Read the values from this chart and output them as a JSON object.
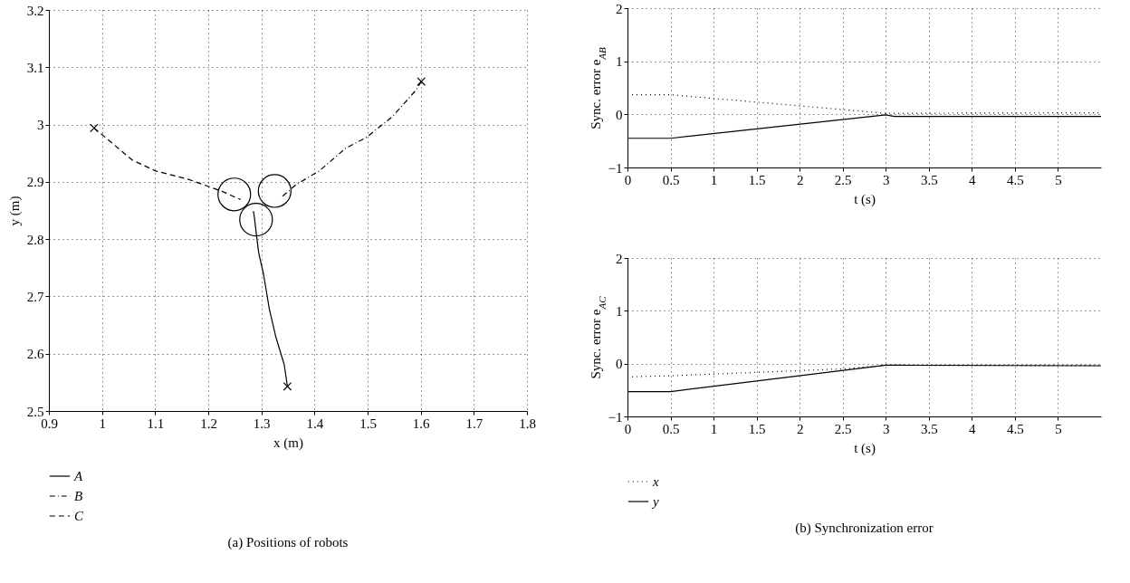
{
  "chart_data": [
    {
      "type": "line",
      "title": "(a)  Positions of robots",
      "xlabel": "x (m)",
      "ylabel": "y (m)",
      "xlim": [
        0.9,
        1.8
      ],
      "xticks": [
        0.9,
        1,
        1.1,
        1.2,
        1.3,
        1.4,
        1.5,
        1.6,
        1.7,
        1.8
      ],
      "ylim": [
        2.5,
        3.2
      ],
      "yticks": [
        2.5,
        2.6,
        2.7,
        2.8,
        2.9,
        3,
        3.1,
        3.2
      ],
      "grid": true,
      "legend": "bottom",
      "series": [
        {
          "name": "A",
          "color": "#000000",
          "line_style": "solid",
          "x": [
            1.349,
            1.343,
            1.327,
            1.315,
            1.304,
            1.295,
            1.29,
            1.287,
            1.285
          ],
          "values": [
            2.543,
            2.581,
            2.63,
            2.678,
            2.739,
            2.776,
            2.813,
            2.837,
            2.849
          ]
        },
        {
          "name": "B",
          "color": "#000000",
          "line_style": "dashdot",
          "x": [
            1.601,
            1.591,
            1.547,
            1.497,
            1.459,
            1.409,
            1.365,
            1.34
          ],
          "values": [
            3.075,
            3.06,
            3.014,
            2.977,
            2.959,
            2.919,
            2.895,
            2.875
          ]
        },
        {
          "name": "C",
          "color": "#000000",
          "line_style": "dashed",
          "x": [
            0.985,
            1.007,
            1.057,
            1.101,
            1.164,
            1.227,
            1.261
          ],
          "values": [
            2.994,
            2.977,
            2.938,
            2.919,
            2.904,
            2.883,
            2.869
          ]
        },
        {
          "type": "scatter",
          "color": "#000000",
          "marker": "cross",
          "x": [
            1.349,
            1.601,
            0.985
          ],
          "values": [
            2.543,
            3.075,
            2.994
          ]
        },
        {
          "type": "scatter",
          "color": "#000000",
          "marker": "circle",
          "x": [
            1.249,
            1.325,
            1.29
          ],
          "values": [
            2.878,
            2.884,
            2.834
          ]
        }
      ]
    },
    {
      "type": "line",
      "ylabel": "Sync. error e$_{AB}$",
      "xlabel": "t (s)",
      "xlim": [
        0,
        5.5
      ],
      "xticks": [
        0,
        0.5,
        1,
        1.5,
        2,
        2.5,
        3,
        3.5,
        4,
        4.5,
        5
      ],
      "ylim": [
        -1,
        2
      ],
      "yticks": [
        -1,
        0,
        1,
        2
      ],
      "grid": true,
      "series": [
        {
          "color": "#000000",
          "line_style": "dotted",
          "x": [
            0,
            0.5,
            1,
            3,
            5.5
          ],
          "values": [
            0.37,
            0.37,
            0.3,
            0.02,
            0.03
          ]
        },
        {
          "color": "#000000",
          "line_style": "solid",
          "x": [
            0,
            0.5,
            3,
            3.1,
            5.5
          ],
          "values": [
            -0.45,
            -0.45,
            -0.01,
            -0.04,
            -0.04
          ]
        }
      ]
    },
    {
      "type": "line",
      "title": "(b)  Synchronization error",
      "ylabel": "Sync. error e$_{AC}$",
      "xlabel": "t (s)",
      "xlim": [
        0,
        5.5
      ],
      "xticks": [
        0,
        0.5,
        1,
        1.5,
        2,
        2.5,
        3,
        3.5,
        4,
        4.5,
        5
      ],
      "ylim": [
        -1,
        2
      ],
      "yticks": [
        -1,
        0,
        1,
        2
      ],
      "grid": true,
      "legend": "bottom",
      "series": [
        {
          "name": "x",
          "color": "#000000",
          "line_style": "dotted",
          "x": [
            0,
            0.5,
            2.5,
            3,
            5.5
          ],
          "values": [
            -0.25,
            -0.23,
            -0.1,
            -0.03,
            -0.04
          ]
        },
        {
          "name": "y",
          "color": "#000000",
          "line_style": "solid",
          "x": [
            0,
            0.5,
            3,
            5.5
          ],
          "values": [
            -0.53,
            -0.53,
            -0.03,
            -0.04
          ]
        }
      ]
    }
  ]
}
